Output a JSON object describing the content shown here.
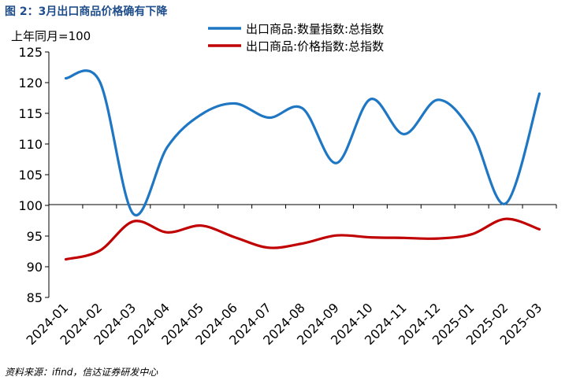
{
  "figure": {
    "title": "图 2：3月出口商品价格确有下降",
    "source": "资料来源：ifind，信达证券研发中心"
  },
  "chart_data": {
    "type": "line",
    "title": "3月出口商品价格确有下降",
    "unit_label": "上年同月=100",
    "categories": [
      "2024-01",
      "2024-02",
      "2024-03",
      "2024-04",
      "2024-05",
      "2024-06",
      "2024-07",
      "2024-08",
      "2024-09",
      "2024-10",
      "2024-11",
      "2024-12",
      "2025-01",
      "2025-02",
      "2025-03"
    ],
    "ylim": [
      85,
      125
    ],
    "yticks": [
      85,
      90,
      95,
      100,
      105,
      110,
      115,
      120,
      125
    ],
    "grid": false,
    "legend_position": "top-right",
    "series": [
      {
        "name": "出口商品:数量指数:总指数",
        "color": "#1f77c4",
        "values": [
          120.7,
          120.2,
          98.6,
          109.5,
          114.8,
          116.6,
          114.3,
          115.8,
          106.9,
          117.3,
          111.6,
          117.2,
          112.0,
          100.3,
          118.2
        ]
      },
      {
        "name": "出口商品:价格指数:总指数",
        "color": "#c00000",
        "values": [
          91.2,
          92.6,
          97.4,
          95.6,
          96.7,
          94.8,
          93.1,
          93.8,
          95.1,
          94.8,
          94.7,
          94.6,
          95.3,
          97.8,
          96.1
        ]
      }
    ]
  }
}
